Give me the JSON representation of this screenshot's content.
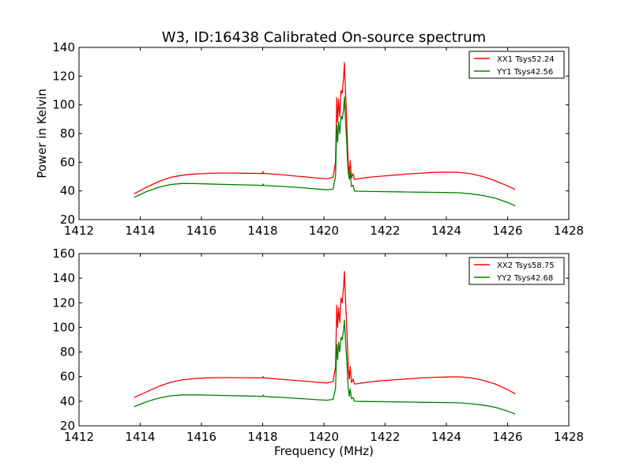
{
  "figure": {
    "title": "W3, ID:16438 Calibrated On-source spectrum",
    "xlabel": "Frequency (MHz)"
  },
  "chart_data": [
    {
      "type": "line",
      "title": "W3, ID:16438 Calibrated On-source spectrum",
      "xlabel": "",
      "ylabel": "Power in Kelvin",
      "xlim": [
        1412,
        1428
      ],
      "ylim": [
        20,
        140
      ],
      "xticks": [
        1412,
        1414,
        1416,
        1418,
        1420,
        1422,
        1424,
        1426,
        1428
      ],
      "yticks": [
        20,
        40,
        60,
        80,
        100,
        120,
        140
      ],
      "grid": false,
      "legend_position": "top-right",
      "series": [
        {
          "name": "XX1 Tsys52.24",
          "color": "#ff0000",
          "x": [
            1413.8,
            1414.2,
            1414.6,
            1415.0,
            1415.4,
            1415.8,
            1416.2,
            1416.6,
            1417.0,
            1417.4,
            1417.8,
            1418.0,
            1418.01,
            1418.03,
            1418.2,
            1418.6,
            1419.0,
            1419.4,
            1419.8,
            1420.1,
            1420.3,
            1420.38,
            1420.42,
            1420.45,
            1420.48,
            1420.52,
            1420.56,
            1420.6,
            1420.64,
            1420.67,
            1420.7,
            1420.74,
            1420.78,
            1420.8,
            1420.83,
            1420.86,
            1420.9,
            1420.95,
            1421.0,
            1421.1,
            1421.3,
            1421.6,
            1422.0,
            1422.4,
            1422.8,
            1423.2,
            1423.6,
            1424.0,
            1424.4,
            1424.8,
            1425.2,
            1425.6,
            1426.0,
            1426.25
          ],
          "y": [
            38.0,
            42.5,
            46.5,
            49.5,
            51.0,
            51.8,
            52.2,
            52.4,
            52.4,
            52.3,
            52.2,
            52.1,
            53.5,
            52.2,
            51.9,
            51.3,
            50.5,
            49.8,
            48.9,
            48.4,
            49.5,
            60.0,
            105.0,
            88.0,
            104.0,
            92.0,
            110.0,
            108.0,
            118.0,
            129.5,
            112.0,
            92.0,
            68.0,
            58.0,
            52.0,
            61.0,
            49.0,
            52.0,
            48.0,
            48.3,
            49.0,
            49.8,
            50.5,
            51.2,
            51.9,
            52.4,
            52.9,
            53.1,
            53.0,
            52.0,
            50.0,
            47.0,
            43.5,
            41.0
          ]
        },
        {
          "name": "YY1 Tsys42.56",
          "color": "#008000",
          "x": [
            1413.8,
            1414.2,
            1414.6,
            1415.0,
            1415.4,
            1415.8,
            1416.2,
            1416.6,
            1417.0,
            1417.4,
            1417.8,
            1418.0,
            1418.01,
            1418.03,
            1418.2,
            1418.6,
            1419.0,
            1419.4,
            1419.8,
            1420.1,
            1420.3,
            1420.38,
            1420.42,
            1420.45,
            1420.48,
            1420.52,
            1420.56,
            1420.6,
            1420.64,
            1420.67,
            1420.7,
            1420.74,
            1420.78,
            1420.8,
            1420.83,
            1420.86,
            1420.9,
            1420.95,
            1421.0,
            1421.1,
            1421.3,
            1421.6,
            1422.0,
            1422.4,
            1422.8,
            1423.2,
            1423.6,
            1424.0,
            1424.4,
            1424.8,
            1425.2,
            1425.6,
            1426.0,
            1426.25
          ],
          "y": [
            35.5,
            39.5,
            42.5,
            44.5,
            45.2,
            45.1,
            44.9,
            44.6,
            44.4,
            44.2,
            44.0,
            43.8,
            44.8,
            43.9,
            43.6,
            43.2,
            42.6,
            42.0,
            41.3,
            40.8,
            41.2,
            50.0,
            86.0,
            74.0,
            88.0,
            80.0,
            92.0,
            90.0,
            96.0,
            105.5,
            92.0,
            76.0,
            58.0,
            52.0,
            48.0,
            53.0,
            43.0,
            44.0,
            40.0,
            39.8,
            39.7,
            39.6,
            39.5,
            39.4,
            39.2,
            39.1,
            39.0,
            38.9,
            38.7,
            38.0,
            36.8,
            34.9,
            32.0,
            29.5
          ]
        }
      ]
    },
    {
      "type": "line",
      "title": "",
      "xlabel": "Frequency (MHz)",
      "ylabel": "",
      "xlim": [
        1412,
        1428
      ],
      "ylim": [
        20,
        160
      ],
      "xticks": [
        1412,
        1414,
        1416,
        1418,
        1420,
        1422,
        1424,
        1426,
        1428
      ],
      "yticks": [
        20,
        40,
        60,
        80,
        100,
        120,
        140,
        160
      ],
      "grid": false,
      "legend_position": "top-right",
      "series": [
        {
          "name": "XX2 Tsys58.75",
          "color": "#ff0000",
          "x": [
            1413.8,
            1414.2,
            1414.6,
            1415.0,
            1415.4,
            1415.8,
            1416.2,
            1416.6,
            1417.0,
            1417.4,
            1417.8,
            1418.0,
            1418.01,
            1418.03,
            1418.2,
            1418.6,
            1419.0,
            1419.4,
            1419.8,
            1420.1,
            1420.3,
            1420.38,
            1420.42,
            1420.45,
            1420.48,
            1420.52,
            1420.56,
            1420.6,
            1420.64,
            1420.67,
            1420.7,
            1420.74,
            1420.78,
            1420.8,
            1420.83,
            1420.86,
            1420.9,
            1420.95,
            1421.0,
            1421.1,
            1421.3,
            1421.6,
            1422.0,
            1422.4,
            1422.8,
            1423.2,
            1423.6,
            1424.0,
            1424.4,
            1424.8,
            1425.2,
            1425.6,
            1426.0,
            1426.25
          ],
          "y": [
            43.0,
            47.5,
            52.0,
            55.5,
            57.5,
            58.5,
            59.0,
            59.2,
            59.2,
            59.1,
            59.0,
            58.9,
            60.0,
            59.0,
            58.6,
            57.8,
            57.0,
            56.2,
            55.3,
            54.8,
            56.0,
            68.0,
            118.0,
            100.0,
            116.0,
            104.0,
            124.0,
            120.0,
            132.0,
            145.5,
            126.0,
            104.0,
            78.0,
            66.0,
            58.0,
            68.0,
            55.0,
            58.0,
            54.0,
            54.3,
            55.0,
            56.0,
            56.8,
            57.6,
            58.3,
            58.9,
            59.4,
            59.7,
            59.8,
            59.0,
            57.0,
            54.0,
            49.5,
            46.0
          ]
        },
        {
          "name": "YY2 Tsys42.68",
          "color": "#008000",
          "x": [
            1413.8,
            1414.2,
            1414.6,
            1415.0,
            1415.4,
            1415.8,
            1416.2,
            1416.6,
            1417.0,
            1417.4,
            1417.8,
            1418.0,
            1418.01,
            1418.03,
            1418.2,
            1418.6,
            1419.0,
            1419.4,
            1419.8,
            1420.1,
            1420.3,
            1420.38,
            1420.42,
            1420.45,
            1420.48,
            1420.52,
            1420.56,
            1420.6,
            1420.64,
            1420.67,
            1420.7,
            1420.74,
            1420.78,
            1420.8,
            1420.83,
            1420.86,
            1420.9,
            1420.95,
            1421.0,
            1421.1,
            1421.3,
            1421.6,
            1422.0,
            1422.4,
            1422.8,
            1423.2,
            1423.6,
            1424.0,
            1424.4,
            1424.8,
            1425.2,
            1425.6,
            1426.0,
            1426.25
          ],
          "y": [
            35.5,
            39.5,
            42.5,
            44.5,
            45.2,
            45.2,
            45.0,
            44.7,
            44.5,
            44.3,
            44.1,
            43.9,
            45.0,
            44.0,
            43.6,
            43.1,
            42.5,
            41.9,
            41.2,
            40.8,
            41.5,
            50.0,
            86.0,
            74.0,
            88.0,
            80.0,
            92.0,
            90.0,
            97.0,
            106.0,
            92.0,
            76.0,
            58.0,
            50.0,
            44.0,
            50.0,
            42.0,
            43.0,
            40.0,
            39.9,
            39.8,
            39.7,
            39.6,
            39.4,
            39.3,
            39.1,
            39.0,
            38.9,
            38.7,
            38.0,
            36.8,
            35.0,
            32.0,
            29.5
          ]
        }
      ]
    }
  ]
}
